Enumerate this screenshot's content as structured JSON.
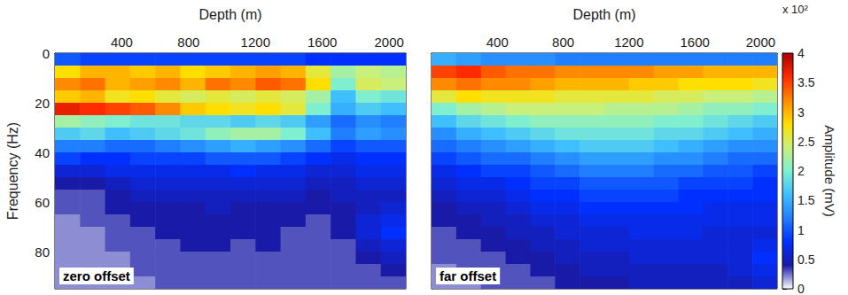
{
  "chart_data": [
    {
      "type": "heatmap",
      "xlabel": "Depth (m)",
      "ylabel": "Frequency (Hz)",
      "panel_label": "zero offset",
      "xlim": [
        0,
        2100
      ],
      "xticks": [
        400,
        800,
        1200,
        1600,
        2000
      ],
      "ylim": [
        0,
        95
      ],
      "yticks": [
        0,
        20,
        40,
        60,
        80
      ],
      "depth_bins": [
        0,
        150,
        300,
        450,
        600,
        750,
        900,
        1050,
        1200,
        1350,
        1500,
        1650,
        1800,
        1950,
        2100
      ],
      "frequency_bins": [
        0,
        5,
        10,
        15,
        20,
        25,
        30,
        35,
        40,
        45,
        50,
        55,
        60,
        65,
        70,
        75,
        80,
        85,
        90,
        95
      ],
      "amplitude": [
        [
          1.0,
          0.9,
          0.9,
          0.9,
          0.9,
          0.9,
          0.9,
          0.9,
          0.9,
          0.9,
          0.8,
          0.8,
          0.8,
          0.8
        ],
        [
          2.8,
          3.0,
          3.0,
          2.9,
          3.0,
          2.8,
          2.9,
          3.0,
          3.1,
          3.0,
          2.6,
          2.2,
          2.4,
          2.3
        ],
        [
          3.2,
          3.3,
          3.0,
          3.1,
          3.2,
          3.0,
          3.3,
          3.2,
          3.4,
          3.3,
          2.8,
          2.0,
          2.5,
          2.4
        ],
        [
          2.9,
          3.0,
          2.7,
          2.8,
          2.6,
          2.5,
          2.6,
          2.5,
          2.6,
          2.5,
          2.2,
          1.6,
          2.0,
          1.9
        ],
        [
          3.7,
          3.6,
          3.5,
          3.4,
          3.2,
          2.9,
          2.8,
          2.7,
          2.8,
          2.6,
          2.0,
          1.5,
          1.7,
          1.6
        ],
        [
          2.2,
          2.1,
          2.0,
          1.9,
          1.9,
          1.8,
          1.8,
          1.7,
          1.8,
          1.7,
          1.4,
          1.1,
          1.3,
          1.2
        ],
        [
          1.7,
          1.8,
          1.6,
          1.7,
          1.8,
          1.9,
          2.1,
          2.2,
          2.2,
          2.0,
          1.6,
          1.2,
          1.4,
          1.3
        ],
        [
          1.2,
          1.2,
          1.1,
          1.1,
          1.2,
          1.3,
          1.4,
          1.5,
          1.4,
          1.3,
          1.1,
          0.9,
          1.0,
          1.0
        ],
        [
          0.9,
          0.8,
          0.8,
          0.9,
          0.9,
          0.9,
          1.0,
          1.0,
          1.0,
          0.9,
          0.8,
          0.7,
          0.8,
          0.8
        ],
        [
          0.6,
          0.6,
          0.7,
          0.7,
          0.7,
          0.7,
          0.7,
          0.8,
          0.7,
          0.7,
          0.6,
          0.6,
          0.7,
          0.7
        ],
        [
          0.4,
          0.4,
          0.5,
          0.6,
          0.6,
          0.6,
          0.6,
          0.6,
          0.6,
          0.6,
          0.5,
          0.5,
          0.6,
          0.6
        ],
        [
          0.3,
          0.3,
          0.4,
          0.5,
          0.5,
          0.5,
          0.5,
          0.5,
          0.5,
          0.5,
          0.4,
          0.5,
          0.5,
          0.5
        ],
        [
          0.3,
          0.3,
          0.4,
          0.4,
          0.4,
          0.4,
          0.5,
          0.4,
          0.4,
          0.4,
          0.4,
          0.4,
          0.5,
          0.6
        ],
        [
          0.2,
          0.3,
          0.3,
          0.4,
          0.4,
          0.4,
          0.4,
          0.4,
          0.4,
          0.4,
          0.3,
          0.4,
          0.6,
          0.7
        ],
        [
          0.2,
          0.2,
          0.3,
          0.3,
          0.4,
          0.4,
          0.4,
          0.4,
          0.4,
          0.3,
          0.3,
          0.4,
          0.6,
          0.8
        ],
        [
          0.2,
          0.2,
          0.3,
          0.3,
          0.3,
          0.4,
          0.4,
          0.3,
          0.4,
          0.3,
          0.3,
          0.3,
          0.5,
          0.6
        ],
        [
          0.2,
          0.2,
          0.2,
          0.3,
          0.3,
          0.3,
          0.3,
          0.3,
          0.3,
          0.3,
          0.3,
          0.3,
          0.4,
          0.5
        ],
        [
          0.2,
          0.2,
          0.2,
          0.3,
          0.3,
          0.3,
          0.3,
          0.3,
          0.3,
          0.3,
          0.3,
          0.3,
          0.3,
          0.4
        ],
        [
          0.2,
          0.2,
          0.2,
          0.2,
          0.3,
          0.3,
          0.3,
          0.3,
          0.3,
          0.3,
          0.3,
          0.3,
          0.3,
          0.3
        ]
      ]
    },
    {
      "type": "heatmap",
      "xlabel": "Depth (m)",
      "panel_label": "far offset",
      "tick_labels": "x",
      "xlim": [
        0,
        2100
      ],
      "xticks": [
        400,
        800,
        1200,
        1600,
        2000
      ],
      "ylim": [
        0,
        95
      ],
      "yticks": [
        0,
        20,
        40,
        60,
        80
      ],
      "depth_bins": [
        0,
        150,
        300,
        450,
        600,
        750,
        900,
        1050,
        1200,
        1350,
        1500,
        1650,
        1800,
        1950,
        2100
      ],
      "frequency_bins": [
        0,
        5,
        10,
        15,
        20,
        25,
        30,
        35,
        40,
        45,
        50,
        55,
        60,
        65,
        70,
        75,
        80,
        85,
        90,
        95
      ],
      "amplitude": [
        [
          1.5,
          1.4,
          1.3,
          1.3,
          1.3,
          1.2,
          1.2,
          1.2,
          1.2,
          1.2,
          1.2,
          1.2,
          1.2,
          1.2
        ],
        [
          3.5,
          3.6,
          3.4,
          3.3,
          3.3,
          3.2,
          3.2,
          3.2,
          3.2,
          3.1,
          3.1,
          3.0,
          3.0,
          3.0
        ],
        [
          3.2,
          3.3,
          3.2,
          3.2,
          3.1,
          3.0,
          3.0,
          3.0,
          2.9,
          2.9,
          2.8,
          2.8,
          2.8,
          2.7
        ],
        [
          2.6,
          2.8,
          2.7,
          2.7,
          2.7,
          2.6,
          2.6,
          2.6,
          2.6,
          2.5,
          2.5,
          2.4,
          2.4,
          2.3
        ],
        [
          2.0,
          2.2,
          2.3,
          2.4,
          2.4,
          2.4,
          2.4,
          2.3,
          2.3,
          2.3,
          2.2,
          2.1,
          2.1,
          2.0
        ],
        [
          1.6,
          1.8,
          1.9,
          2.0,
          2.1,
          2.1,
          2.1,
          2.1,
          2.1,
          2.0,
          2.0,
          1.9,
          1.8,
          1.7
        ],
        [
          1.3,
          1.5,
          1.6,
          1.7,
          1.8,
          1.9,
          1.9,
          1.9,
          1.9,
          1.8,
          1.8,
          1.7,
          1.6,
          1.5
        ],
        [
          1.1,
          1.2,
          1.3,
          1.4,
          1.5,
          1.6,
          1.7,
          1.7,
          1.7,
          1.6,
          1.5,
          1.4,
          1.3,
          1.3
        ],
        [
          0.9,
          1.0,
          1.1,
          1.1,
          1.2,
          1.3,
          1.4,
          1.4,
          1.4,
          1.3,
          1.3,
          1.2,
          1.1,
          1.1
        ],
        [
          0.7,
          0.8,
          0.9,
          0.9,
          1.0,
          1.1,
          1.2,
          1.2,
          1.2,
          1.1,
          1.1,
          1.0,
          1.0,
          0.9
        ],
        [
          0.6,
          0.7,
          0.7,
          0.8,
          0.9,
          0.9,
          1.0,
          1.0,
          1.0,
          1.0,
          0.9,
          0.9,
          0.9,
          0.8
        ],
        [
          0.5,
          0.6,
          0.6,
          0.7,
          0.8,
          0.8,
          0.9,
          0.9,
          0.9,
          0.9,
          0.8,
          0.8,
          0.8,
          0.8
        ],
        [
          0.4,
          0.5,
          0.5,
          0.6,
          0.7,
          0.7,
          0.8,
          0.8,
          0.8,
          0.8,
          0.8,
          0.7,
          0.7,
          0.7
        ],
        [
          0.4,
          0.4,
          0.5,
          0.5,
          0.6,
          0.6,
          0.7,
          0.7,
          0.7,
          0.7,
          0.7,
          0.7,
          0.7,
          0.7
        ],
        [
          0.3,
          0.4,
          0.4,
          0.5,
          0.5,
          0.6,
          0.6,
          0.6,
          0.7,
          0.7,
          0.7,
          0.6,
          0.6,
          0.6
        ],
        [
          0.3,
          0.3,
          0.4,
          0.4,
          0.5,
          0.5,
          0.6,
          0.6,
          0.6,
          0.6,
          0.6,
          0.6,
          0.6,
          0.7
        ],
        [
          0.3,
          0.3,
          0.3,
          0.4,
          0.4,
          0.5,
          0.5,
          0.5,
          0.6,
          0.6,
          0.6,
          0.6,
          0.6,
          0.8
        ],
        [
          0.2,
          0.3,
          0.3,
          0.3,
          0.4,
          0.4,
          0.5,
          0.5,
          0.5,
          0.5,
          0.5,
          0.5,
          0.6,
          0.7
        ],
        [
          0.2,
          0.2,
          0.3,
          0.3,
          0.3,
          0.4,
          0.4,
          0.4,
          0.5,
          0.5,
          0.5,
          0.5,
          0.5,
          0.6
        ]
      ],
      "colorbar_label": "Amplitude (mV)",
      "colorbar_multiplier": "x 10²",
      "colorbar_range": [
        0,
        4
      ],
      "colorbar_ticks": [
        0,
        0.5,
        1,
        1.5,
        2,
        2.5,
        3,
        3.5,
        4
      ]
    }
  ]
}
